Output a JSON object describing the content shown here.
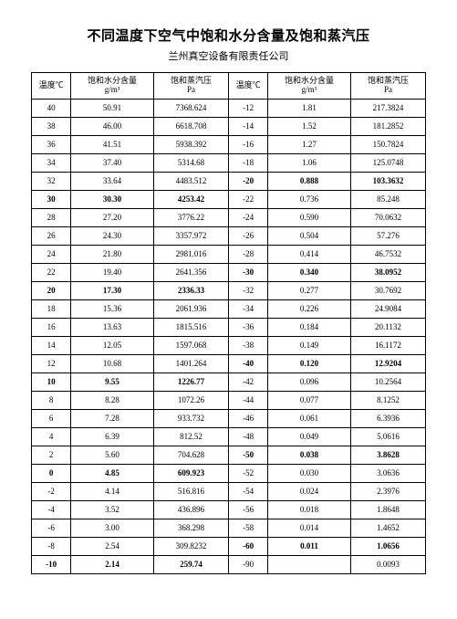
{
  "title": "不同温度下空气中饱和水分含量及饱和蒸汽压",
  "subtitle": "兰州真空设备有限责任公司",
  "headers": {
    "temp": "温度℃",
    "water": "饱和水分含量",
    "water_unit": "g/m³",
    "vapor": "饱和蒸汽压",
    "vapor_unit": "Pa"
  },
  "rows": [
    {
      "t1": "40",
      "w1": "50.91",
      "p1": "7368.624",
      "t2": "-12",
      "w2": "1.81",
      "p2": "217.3824",
      "bold": false
    },
    {
      "t1": "38",
      "w1": "46.00",
      "p1": "6618.708",
      "t2": "-14",
      "w2": "1.52",
      "p2": "181.2852",
      "bold": false
    },
    {
      "t1": "36",
      "w1": "41.51",
      "p1": "5938.392",
      "t2": "-16",
      "w2": "1.27",
      "p2": "150.7824",
      "bold": false
    },
    {
      "t1": "34",
      "w1": "37.40",
      "p1": "5314.68",
      "t2": "-18",
      "w2": "1.06",
      "p2": "125.0748",
      "bold": false
    },
    {
      "t1": "32",
      "w1": "33.64",
      "p1": "4483.512",
      "t2": "-20",
      "w2": "0.888",
      "p2": "103.3632",
      "bold2": true
    },
    {
      "t1": "30",
      "w1": "30.30",
      "p1": "4253.42",
      "t2": "-22",
      "w2": "0.736",
      "p2": "85.248",
      "bold1": true
    },
    {
      "t1": "28",
      "w1": "27.20",
      "p1": "3776.22",
      "t2": "-24",
      "w2": "0.590",
      "p2": "70.0632",
      "bold": false
    },
    {
      "t1": "26",
      "w1": "24.30",
      "p1": "3357.972",
      "t2": "-26",
      "w2": "0.504",
      "p2": "57.276",
      "bold": false
    },
    {
      "t1": "24",
      "w1": "21.80",
      "p1": "2981.016",
      "t2": "-28",
      "w2": "0.414",
      "p2": "46.7532",
      "bold": false
    },
    {
      "t1": "22",
      "w1": "19.40",
      "p1": "2641.356",
      "t2": "-30",
      "w2": "0.340",
      "p2": "38.0952",
      "bold2": true
    },
    {
      "t1": "20",
      "w1": "17.30",
      "p1": "2336.33",
      "t2": "-32",
      "w2": "0.277",
      "p2": "30.7692",
      "bold1": true
    },
    {
      "t1": "18",
      "w1": "15.36",
      "p1": "2061.936",
      "t2": "-34",
      "w2": "0.226",
      "p2": "24.9084",
      "bold": false
    },
    {
      "t1": "16",
      "w1": "13.63",
      "p1": "1815.516",
      "t2": "-36",
      "w2": "0.184",
      "p2": "20.1132",
      "bold": false
    },
    {
      "t1": "14",
      "w1": "12.05",
      "p1": "1597.068",
      "t2": "-38",
      "w2": "0.149",
      "p2": "16.1172",
      "bold": false
    },
    {
      "t1": "12",
      "w1": "10.68",
      "p1": "1401.264",
      "t2": "-40",
      "w2": "0.120",
      "p2": "12.9204",
      "bold2": true
    },
    {
      "t1": "10",
      "w1": "9.55",
      "p1": "1226.77",
      "t2": "-42",
      "w2": "0.096",
      "p2": "10.2564",
      "bold1": true
    },
    {
      "t1": "8",
      "w1": "8.28",
      "p1": "1072.26",
      "t2": "-44",
      "w2": "0.077",
      "p2": "8.1252",
      "bold": false
    },
    {
      "t1": "6",
      "w1": "7.28",
      "p1": "933.732",
      "t2": "-46",
      "w2": "0.061",
      "p2": "6.3936",
      "bold": false
    },
    {
      "t1": "4",
      "w1": "6.39",
      "p1": "812.52",
      "t2": "-48",
      "w2": "0.049",
      "p2": "5.0616",
      "bold": false
    },
    {
      "t1": "2",
      "w1": "5.60",
      "p1": "704.628",
      "t2": "-50",
      "w2": "0.038",
      "p2": "3.8628",
      "bold2": true
    },
    {
      "t1": "0",
      "w1": "4.85",
      "p1": "609.923",
      "t2": "-52",
      "w2": "0.030",
      "p2": "3.0636",
      "bold1": true
    },
    {
      "t1": "-2",
      "w1": "4.14",
      "p1": "516.816",
      "t2": "-54",
      "w2": "0.024",
      "p2": "2.3976",
      "bold": false
    },
    {
      "t1": "-4",
      "w1": "3.52",
      "p1": "436.896",
      "t2": "-56",
      "w2": "0.018",
      "p2": "1.8648",
      "bold": false
    },
    {
      "t1": "-6",
      "w1": "3.00",
      "p1": "368.298",
      "t2": "-58",
      "w2": "0.014",
      "p2": "1.4652",
      "bold": false
    },
    {
      "t1": "-8",
      "w1": "2.54",
      "p1": "309.8232",
      "t2": "-60",
      "w2": "0.011",
      "p2": "1.0656",
      "bold2": true
    },
    {
      "t1": "-10",
      "w1": "2.14",
      "p1": "259.74",
      "t2": "-90",
      "w2": "",
      "p2": "0.0093",
      "bold1": true
    }
  ]
}
